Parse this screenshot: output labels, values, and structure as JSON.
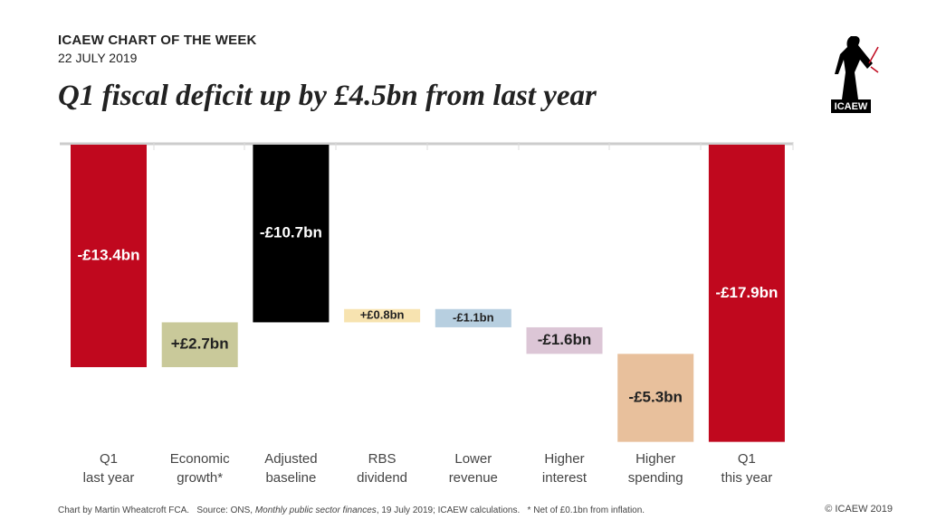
{
  "header": "ICAEW CHART OF THE WEEK",
  "date": "22 JULY 2019",
  "logo_text": "ICAEW",
  "chart_data": {
    "type": "waterfall",
    "title": "Q1 fiscal deficit up by £4.5bn from last year",
    "categories": [
      "Q1\nlast year",
      "Economic\ngrowth*",
      "Adjusted\nbaseline",
      "RBS\ndividend",
      "Lower\nrevenue",
      "Higher\ninterest",
      "Higher\nspending",
      "Q1\nthis year"
    ],
    "values": [
      -13.4,
      2.7,
      -10.7,
      0.8,
      -1.1,
      -1.6,
      -5.3,
      -17.9
    ],
    "value_labels": [
      "-£13.4bn",
      "+£2.7bn",
      "-£10.7bn",
      "+£0.8bn",
      "-£1.1bn",
      "-£1.6bn",
      "-£5.3bn",
      "-£17.9bn"
    ],
    "totals": [
      true,
      false,
      true,
      false,
      false,
      false,
      false,
      true
    ],
    "colors": [
      "#c0081e",
      "#c9c99a",
      "#000000",
      "#f7e3b0",
      "#b7cfe0",
      "#dcc6d6",
      "#e8c09c",
      "#c0081e"
    ],
    "label_colors": [
      "#ffffff",
      "#222222",
      "#ffffff",
      "#222222",
      "#222222",
      "#222222",
      "#222222",
      "#ffffff"
    ]
  },
  "footer": {
    "prefix": "Chart by Martin Wheatcroft FCA.   Source: ONS, ",
    "italic": "Monthly public sector finances",
    "suffix": ", 19 July 2019; ICAEW calculations.   * Net of £0.1bn from inflation."
  },
  "copyright": "© ICAEW 2019"
}
